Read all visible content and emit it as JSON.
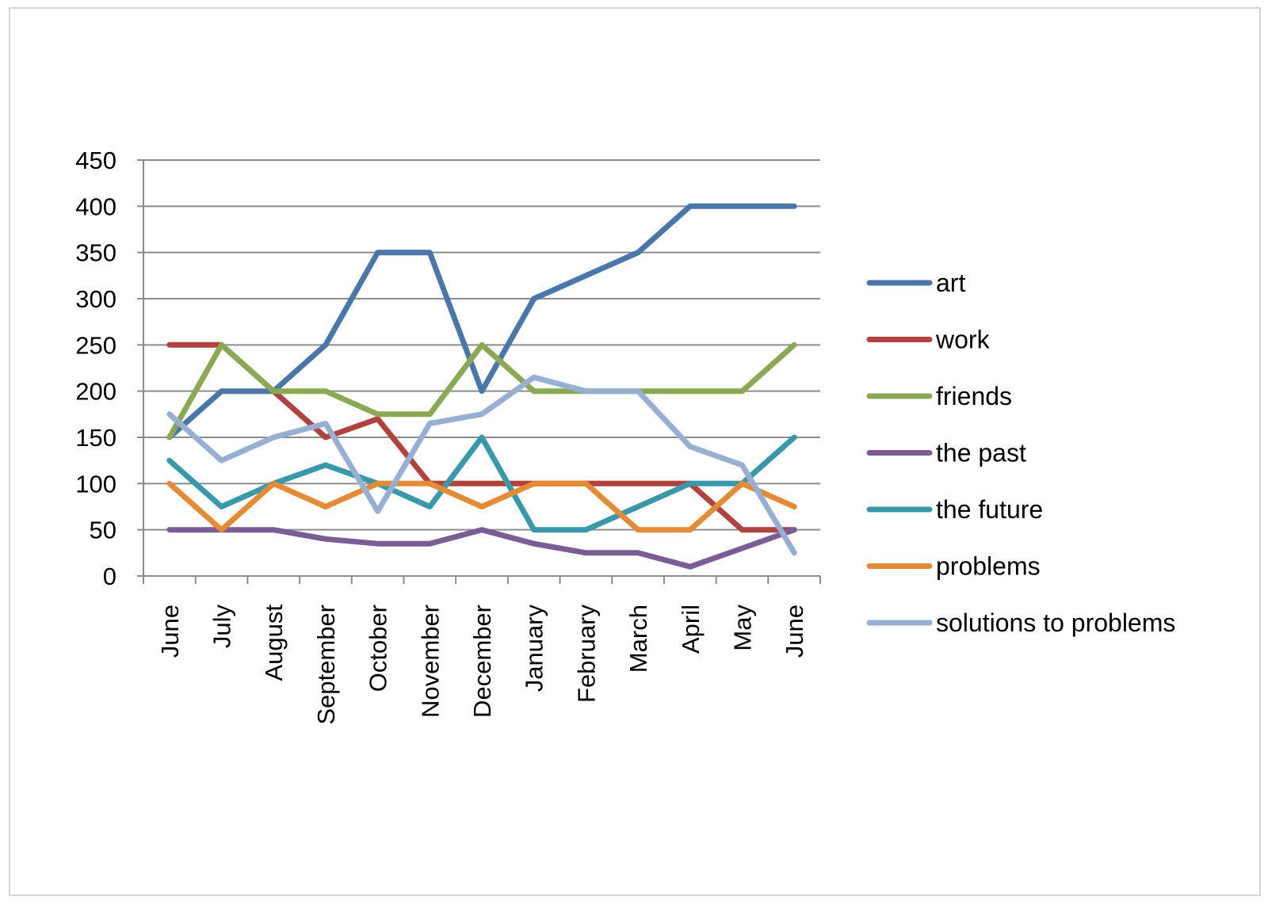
{
  "chart_data": {
    "type": "line",
    "title": "",
    "xlabel": "",
    "ylabel": "",
    "ylim": [
      0,
      450
    ],
    "yticks": [
      0,
      50,
      100,
      150,
      200,
      250,
      300,
      350,
      400,
      450
    ],
    "grid": true,
    "legend_position": "right",
    "categories": [
      "June",
      "July",
      "August",
      "September",
      "October",
      "November",
      "December",
      "January",
      "February",
      "March",
      "April",
      "May",
      "June"
    ],
    "series": [
      {
        "name": "art",
        "color": "#4a76aa",
        "values": [
          150,
          200,
          200,
          250,
          350,
          350,
          200,
          300,
          325,
          350,
          400,
          400,
          400
        ]
      },
      {
        "name": "work",
        "color": "#b0433f",
        "values": [
          250,
          250,
          200,
          150,
          170,
          100,
          100,
          100,
          100,
          100,
          100,
          50,
          50
        ]
      },
      {
        "name": "friends",
        "color": "#8ba954",
        "values": [
          150,
          250,
          200,
          200,
          175,
          175,
          250,
          200,
          200,
          200,
          200,
          200,
          250
        ]
      },
      {
        "name": "the past",
        "color": "#7b5d96",
        "values": [
          50,
          50,
          50,
          40,
          35,
          35,
          50,
          35,
          25,
          25,
          10,
          30,
          50
        ]
      },
      {
        "name": "the future",
        "color": "#3a98ab",
        "values": [
          125,
          75,
          100,
          120,
          100,
          75,
          150,
          50,
          50,
          75,
          100,
          100,
          150
        ]
      },
      {
        "name": "problems",
        "color": "#e38b36",
        "values": [
          100,
          50,
          100,
          75,
          100,
          100,
          75,
          100,
          100,
          50,
          50,
          100,
          75
        ]
      },
      {
        "name": "solutions to problems",
        "color": "#97afd3",
        "values": [
          175,
          125,
          150,
          165,
          70,
          165,
          175,
          215,
          200,
          200,
          140,
          120,
          25
        ]
      }
    ]
  }
}
